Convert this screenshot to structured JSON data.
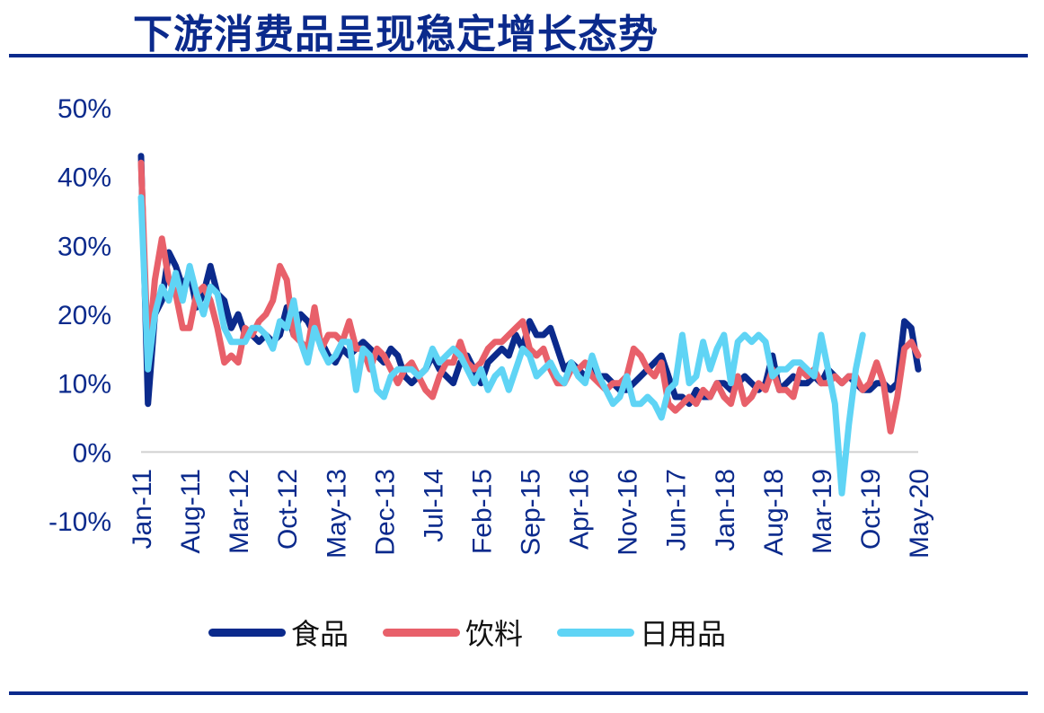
{
  "title": "下游消费品呈现稳定增长态势",
  "chart_data": {
    "type": "line",
    "title": "下游消费品呈现稳定增长态势",
    "xlabel": "",
    "ylabel": "",
    "ylim": [
      -10,
      50
    ],
    "yticks": [
      "50%",
      "40%",
      "30%",
      "20%",
      "10%",
      "0%",
      "-10%"
    ],
    "ytick_values": [
      50,
      40,
      30,
      20,
      10,
      0,
      -10
    ],
    "x_start": "Jan-11",
    "x_end": "May-20",
    "num_points": 113,
    "xticks": [
      "Jan-11",
      "Aug-11",
      "Mar-12",
      "Oct-12",
      "May-13",
      "Dec-13",
      "Jul-14",
      "Feb-15",
      "Sep-15",
      "Apr-16",
      "Nov-16",
      "Jun-17",
      "Jan-18",
      "Aug-18",
      "Mar-19",
      "Oct-19",
      "May-20"
    ],
    "xtick_index": [
      0,
      7,
      14,
      21,
      28,
      35,
      42,
      49,
      56,
      63,
      70,
      77,
      84,
      91,
      98,
      105,
      112
    ],
    "legend_position": "bottom",
    "grid": false,
    "series": [
      {
        "name": "食品",
        "color": "#0b2a8c",
        "anchors": [
          [
            0,
            43
          ],
          [
            1,
            7
          ],
          [
            2,
            20
          ],
          [
            3,
            22
          ],
          [
            4,
            29
          ],
          [
            5,
            27
          ],
          [
            6,
            24
          ],
          [
            7,
            26
          ],
          [
            8,
            21
          ],
          [
            9,
            23
          ],
          [
            10,
            27
          ],
          [
            11,
            23
          ],
          [
            12,
            22
          ],
          [
            13,
            18
          ],
          [
            14,
            20
          ],
          [
            15,
            17
          ],
          [
            16,
            17
          ],
          [
            17,
            16
          ],
          [
            18,
            17
          ],
          [
            19,
            16
          ],
          [
            20,
            17
          ],
          [
            21,
            21
          ],
          [
            22,
            17
          ],
          [
            23,
            20
          ],
          [
            24,
            19
          ],
          [
            25,
            17
          ],
          [
            26,
            16
          ],
          [
            27,
            14
          ],
          [
            28,
            13
          ],
          [
            29,
            15
          ],
          [
            30,
            14
          ],
          [
            31,
            15
          ],
          [
            32,
            16
          ],
          [
            33,
            15
          ],
          [
            34,
            14
          ],
          [
            35,
            13
          ],
          [
            36,
            15
          ],
          [
            37,
            14
          ],
          [
            38,
            11
          ],
          [
            39,
            10
          ],
          [
            40,
            11
          ],
          [
            41,
            12
          ],
          [
            42,
            14
          ],
          [
            43,
            12
          ],
          [
            44,
            11
          ],
          [
            45,
            10
          ],
          [
            46,
            13
          ],
          [
            47,
            14
          ],
          [
            48,
            12
          ],
          [
            49,
            10
          ],
          [
            50,
            13
          ],
          [
            51,
            14
          ],
          [
            52,
            15
          ],
          [
            53,
            14
          ],
          [
            54,
            17
          ],
          [
            55,
            15
          ],
          [
            56,
            19
          ],
          [
            57,
            17
          ],
          [
            58,
            17
          ],
          [
            59,
            18
          ],
          [
            60,
            15
          ],
          [
            61,
            12
          ],
          [
            62,
            13
          ],
          [
            63,
            12
          ],
          [
            64,
            11
          ],
          [
            65,
            12
          ],
          [
            66,
            11
          ],
          [
            67,
            11
          ],
          [
            68,
            10
          ],
          [
            69,
            9
          ],
          [
            70,
            9
          ],
          [
            71,
            10
          ],
          [
            72,
            11
          ],
          [
            73,
            12
          ],
          [
            74,
            13
          ],
          [
            75,
            14
          ],
          [
            76,
            11
          ],
          [
            77,
            8
          ],
          [
            78,
            8
          ],
          [
            79,
            7
          ],
          [
            80,
            9
          ],
          [
            81,
            8
          ],
          [
            82,
            8
          ],
          [
            83,
            10
          ],
          [
            84,
            10
          ],
          [
            85,
            9
          ],
          [
            86,
            10
          ],
          [
            87,
            11
          ],
          [
            88,
            10
          ],
          [
            89,
            9
          ],
          [
            90,
            10
          ],
          [
            91,
            14
          ],
          [
            92,
            9
          ],
          [
            93,
            10
          ],
          [
            94,
            11
          ],
          [
            95,
            10
          ],
          [
            96,
            10
          ],
          [
            97,
            11
          ],
          [
            98,
            10
          ],
          [
            99,
            12
          ],
          [
            100,
            11
          ],
          [
            101,
            10
          ],
          [
            102,
            11
          ],
          [
            103,
            10
          ],
          [
            104,
            9
          ],
          [
            105,
            9
          ],
          [
            106,
            10
          ],
          [
            107,
            10
          ],
          [
            108,
            9
          ],
          [
            109,
            10
          ],
          [
            110,
            19
          ],
          [
            111,
            18
          ],
          [
            112,
            12
          ]
        ]
      },
      {
        "name": "饮料",
        "color": "#e8606a",
        "anchors": [
          [
            0,
            42
          ],
          [
            1,
            14
          ],
          [
            2,
            25
          ],
          [
            3,
            31
          ],
          [
            4,
            25
          ],
          [
            5,
            23
          ],
          [
            6,
            18
          ],
          [
            7,
            18
          ],
          [
            8,
            23
          ],
          [
            9,
            24
          ],
          [
            10,
            22
          ],
          [
            11,
            18
          ],
          [
            12,
            13
          ],
          [
            13,
            14
          ],
          [
            14,
            13
          ],
          [
            15,
            18
          ],
          [
            16,
            17
          ],
          [
            17,
            19
          ],
          [
            18,
            20
          ],
          [
            19,
            22
          ],
          [
            20,
            27
          ],
          [
            21,
            25
          ],
          [
            22,
            17
          ],
          [
            23,
            16
          ],
          [
            24,
            15
          ],
          [
            25,
            21
          ],
          [
            26,
            15
          ],
          [
            27,
            17
          ],
          [
            28,
            17
          ],
          [
            29,
            16
          ],
          [
            30,
            19
          ],
          [
            31,
            15
          ],
          [
            32,
            15
          ],
          [
            33,
            12
          ],
          [
            34,
            15
          ],
          [
            35,
            14
          ],
          [
            36,
            12
          ],
          [
            37,
            10
          ],
          [
            38,
            12
          ],
          [
            39,
            13
          ],
          [
            40,
            11
          ],
          [
            41,
            9
          ],
          [
            42,
            8
          ],
          [
            43,
            11
          ],
          [
            44,
            13
          ],
          [
            45,
            13
          ],
          [
            46,
            16
          ],
          [
            47,
            13
          ],
          [
            48,
            12
          ],
          [
            49,
            13
          ],
          [
            50,
            15
          ],
          [
            51,
            16
          ],
          [
            52,
            16
          ],
          [
            53,
            17
          ],
          [
            54,
            18
          ],
          [
            55,
            19
          ],
          [
            56,
            15
          ],
          [
            57,
            14
          ],
          [
            58,
            15
          ],
          [
            59,
            12
          ],
          [
            60,
            10
          ],
          [
            61,
            10
          ],
          [
            62,
            12
          ],
          [
            63,
            12
          ],
          [
            64,
            13
          ],
          [
            65,
            11
          ],
          [
            66,
            10
          ],
          [
            67,
            9
          ],
          [
            68,
            10
          ],
          [
            69,
            10
          ],
          [
            70,
            11
          ],
          [
            71,
            15
          ],
          [
            72,
            14
          ],
          [
            73,
            12
          ],
          [
            74,
            11
          ],
          [
            75,
            13
          ],
          [
            76,
            7
          ],
          [
            77,
            6
          ],
          [
            78,
            7
          ],
          [
            79,
            8
          ],
          [
            80,
            7
          ],
          [
            81,
            9
          ],
          [
            82,
            8
          ],
          [
            83,
            10
          ],
          [
            84,
            8
          ],
          [
            85,
            7
          ],
          [
            86,
            11
          ],
          [
            87,
            7
          ],
          [
            88,
            8
          ],
          [
            89,
            10
          ],
          [
            90,
            9
          ],
          [
            91,
            12
          ],
          [
            92,
            9
          ],
          [
            93,
            9
          ],
          [
            94,
            8
          ],
          [
            95,
            12
          ],
          [
            96,
            11
          ],
          [
            97,
            12
          ],
          [
            98,
            10
          ],
          [
            99,
            10
          ],
          [
            100,
            11
          ],
          [
            101,
            10
          ],
          [
            102,
            11
          ],
          [
            103,
            11
          ],
          [
            104,
            9
          ],
          [
            105,
            10
          ],
          [
            106,
            13
          ],
          [
            107,
            10
          ],
          [
            108,
            3
          ],
          [
            109,
            8
          ],
          [
            110,
            15
          ],
          [
            111,
            16
          ],
          [
            112,
            14
          ]
        ]
      },
      {
        "name": "日用品",
        "color": "#5fd4f5",
        "anchors": [
          [
            0,
            37
          ],
          [
            1,
            12
          ],
          [
            2,
            20
          ],
          [
            3,
            24
          ],
          [
            4,
            22
          ],
          [
            5,
            26
          ],
          [
            6,
            22
          ],
          [
            7,
            27
          ],
          [
            8,
            23
          ],
          [
            9,
            20
          ],
          [
            10,
            24
          ],
          [
            11,
            23
          ],
          [
            12,
            18
          ],
          [
            13,
            16
          ],
          [
            14,
            16
          ],
          [
            15,
            16
          ],
          [
            16,
            18
          ],
          [
            17,
            18
          ],
          [
            18,
            17
          ],
          [
            19,
            15
          ],
          [
            20,
            19
          ],
          [
            21,
            18
          ],
          [
            22,
            22
          ],
          [
            23,
            16
          ],
          [
            24,
            13
          ],
          [
            25,
            18
          ],
          [
            26,
            15
          ],
          [
            27,
            13
          ],
          [
            28,
            14
          ],
          [
            29,
            16
          ],
          [
            30,
            16
          ],
          [
            31,
            9
          ],
          [
            32,
            15
          ],
          [
            33,
            14
          ],
          [
            34,
            9
          ],
          [
            35,
            8
          ],
          [
            36,
            11
          ],
          [
            37,
            12
          ],
          [
            38,
            12
          ],
          [
            39,
            12
          ],
          [
            40,
            11
          ],
          [
            41,
            12
          ],
          [
            42,
            15
          ],
          [
            43,
            13
          ],
          [
            44,
            14
          ],
          [
            45,
            15
          ],
          [
            46,
            14
          ],
          [
            47,
            12
          ],
          [
            48,
            10
          ],
          [
            49,
            12
          ],
          [
            50,
            9
          ],
          [
            51,
            11
          ],
          [
            52,
            12
          ],
          [
            53,
            9
          ],
          [
            54,
            12
          ],
          [
            55,
            15
          ],
          [
            56,
            14
          ],
          [
            57,
            11
          ],
          [
            58,
            12
          ],
          [
            59,
            13
          ],
          [
            60,
            11
          ],
          [
            61,
            10
          ],
          [
            62,
            13
          ],
          [
            63,
            11
          ],
          [
            64,
            10
          ],
          [
            65,
            14
          ],
          [
            66,
            11
          ],
          [
            67,
            9
          ],
          [
            68,
            7
          ],
          [
            69,
            8
          ],
          [
            70,
            11
          ],
          [
            71,
            7
          ],
          [
            72,
            7
          ],
          [
            73,
            8
          ],
          [
            74,
            7
          ],
          [
            75,
            5
          ],
          [
            76,
            9
          ],
          [
            77,
            10
          ],
          [
            78,
            17
          ],
          [
            79,
            10
          ],
          [
            80,
            11
          ],
          [
            81,
            16
          ],
          [
            82,
            12
          ],
          [
            83,
            15
          ],
          [
            84,
            17
          ],
          [
            85,
            10
          ],
          [
            86,
            16
          ],
          [
            87,
            17
          ],
          [
            88,
            16
          ],
          [
            89,
            17
          ],
          [
            90,
            16
          ],
          [
            91,
            11
          ],
          [
            92,
            12
          ],
          [
            93,
            12
          ],
          [
            94,
            13
          ],
          [
            95,
            13
          ],
          [
            96,
            12
          ],
          [
            97,
            11
          ],
          [
            98,
            17
          ],
          [
            99,
            12
          ],
          [
            100,
            7
          ],
          [
            101,
            -6
          ],
          [
            102,
            4
          ],
          [
            103,
            12
          ],
          [
            104,
            17
          ]
        ]
      }
    ]
  }
}
